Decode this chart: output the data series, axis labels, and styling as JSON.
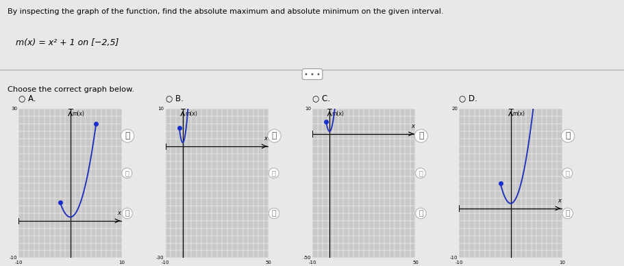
{
  "title": "By inspecting the graph of the function, find the absolute maximum and absolute minimum on the given interval.",
  "subtitle": "m(x) = x² + 1 on [−2,5]",
  "choose": "Choose the correct graph below.",
  "curve_color": "#2233bb",
  "dot_color": "#1a2ecc",
  "bg_color": "#e8e8e8",
  "panel_bg": "#c8c8c8",
  "graphs": [
    {
      "label": "A.",
      "xlim": [
        -10,
        10
      ],
      "ylim": [
        -10,
        30
      ],
      "xtick_val": [
        -10,
        10
      ],
      "xtick_lbl": [
        "-10",
        "10"
      ],
      "ytick_val": [
        -10,
        30
      ],
      "ytick_lbl": [
        "-10",
        "30"
      ]
    },
    {
      "label": "B.",
      "xlim": [
        -10,
        50
      ],
      "ylim": [
        -30,
        10
      ],
      "xtick_val": [
        -10,
        50
      ],
      "xtick_lbl": [
        "-10",
        "50"
      ],
      "ytick_val": [
        -30,
        10
      ],
      "ytick_lbl": [
        "-30",
        "10"
      ]
    },
    {
      "label": "C.",
      "xlim": [
        -10,
        50
      ],
      "ylim": [
        -50,
        10
      ],
      "xtick_val": [
        -10,
        50
      ],
      "xtick_lbl": [
        "-10",
        "50"
      ],
      "ytick_val": [
        -50,
        10
      ],
      "ytick_lbl": [
        "-50",
        "10"
      ]
    },
    {
      "label": "D.",
      "xlim": [
        -10,
        10
      ],
      "ylim": [
        -10,
        20
      ],
      "xtick_val": [
        -10,
        10
      ],
      "xtick_lbl": [
        "-10",
        "10"
      ],
      "ytick_val": [
        -10,
        20
      ],
      "ytick_lbl": [
        "-10",
        "20"
      ]
    }
  ]
}
